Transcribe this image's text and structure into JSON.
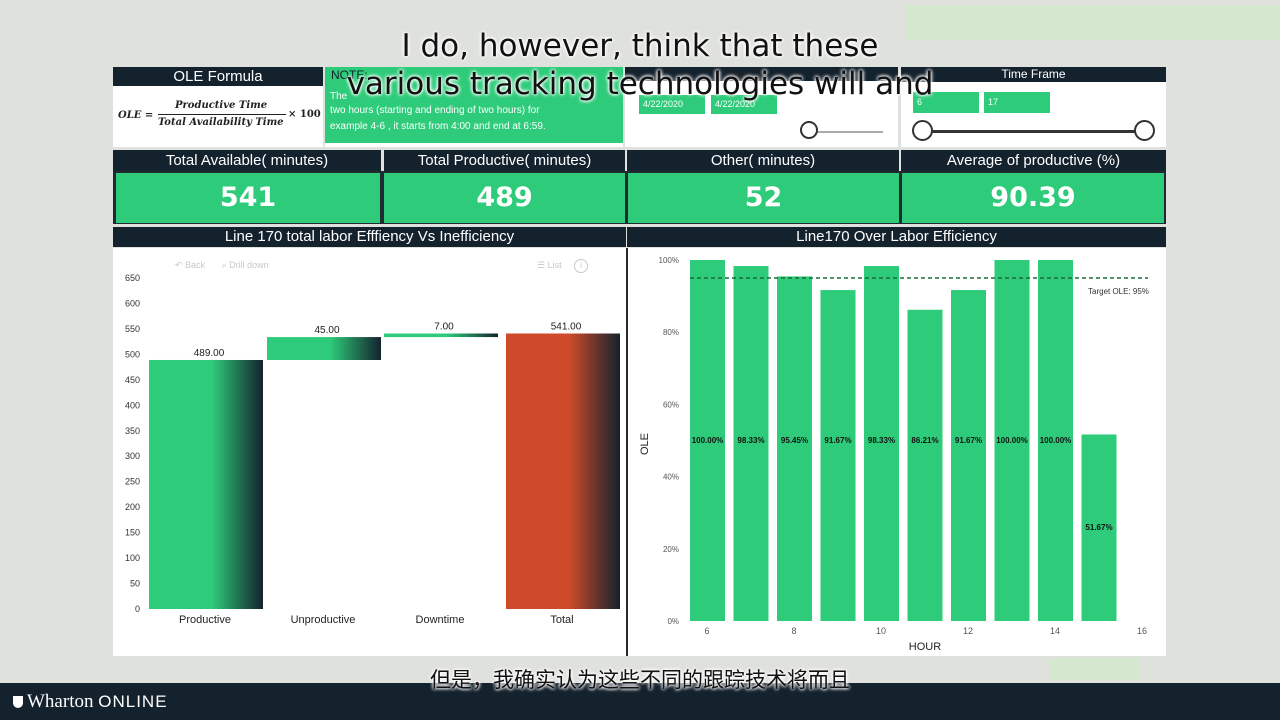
{
  "captions": {
    "line1": "I do, however, think that these",
    "line2": "various tracking technologies will and",
    "chinese": "但是，我确实认为这些不同的跟踪技术将而且"
  },
  "formula_panel": {
    "title": "OLE Formula",
    "lhs": "OLE =",
    "numerator": "Productive Time",
    "denominator": "Total Availability Time",
    "multiplier": "× 100"
  },
  "note": {
    "title": "NOTE:",
    "text_line1": "The",
    "text_line2": "two hours (starting and ending of two hours) for",
    "text_line3": "example 4-6 , it starts from 4:00 and end at 6:59."
  },
  "date_frame": {
    "title": "Date frame",
    "start": "4/22/2020",
    "end": "4/22/2020"
  },
  "time_frame": {
    "title": "Time Frame",
    "start": "6",
    "end": "17"
  },
  "kpis": [
    {
      "label": "Total Available( minutes)",
      "value": "541"
    },
    {
      "label": "Total Productive( minutes)",
      "value": "489"
    },
    {
      "label": "Other( minutes)",
      "value": "52"
    },
    {
      "label": "Average of productive (%)",
      "value": "90.39"
    }
  ],
  "waterfall": {
    "title": "Line 170 total labor Efffiency Vs Inefficiency",
    "toolbar": {
      "back": "Back",
      "drill": "Drill down",
      "list": "List"
    },
    "colors": {
      "green": "#2ecc7a",
      "dark": "#14222e",
      "total": "#cf4a2a"
    }
  },
  "bars": {
    "title": "Line170 Over Labor Efficiency",
    "target_label": "Target OLE: 95%",
    "ylabel": "OLE",
    "xlabel": "HOUR"
  },
  "branding": {
    "logo": "Wharton",
    "suffix": "ONLINE"
  },
  "chart_data": [
    {
      "type": "bar",
      "subtype": "waterfall",
      "categories": [
        "Productive",
        "Unproductive",
        "Downtime",
        "Total"
      ],
      "values": [
        489,
        45,
        7,
        541
      ],
      "labels": [
        "489.00",
        "45.00",
        "7.00",
        "541.00"
      ],
      "title": "Line 170 total labor Efffiency Vs Inefficiency",
      "yticks": [
        "0",
        "50",
        "100",
        "150",
        "200",
        "250",
        "300",
        "350",
        "400",
        "450",
        "500",
        "550",
        "600",
        "650"
      ],
      "ylim": [
        0,
        650
      ]
    },
    {
      "type": "bar",
      "title": "Line170 Over Labor Efficiency",
      "x": [
        6,
        7,
        8,
        9,
        10,
        11,
        12,
        13,
        14,
        15
      ],
      "values": [
        100.0,
        98.33,
        95.45,
        91.67,
        98.33,
        86.21,
        91.67,
        100.0,
        100.0,
        51.67
      ],
      "labels": [
        "100.00%",
        "98.33%",
        "95.45%",
        "91.67%",
        "98.33%",
        "86.21%",
        "91.67%",
        "100.00%",
        "100.00%",
        "51.67%"
      ],
      "xticks": [
        "6",
        "8",
        "10",
        "12",
        "14",
        "16"
      ],
      "yticks": [
        "0%",
        "20%",
        "40%",
        "60%",
        "80%",
        "100%"
      ],
      "ylim": [
        0,
        100
      ],
      "target": 95,
      "xlabel": "HOUR",
      "ylabel": "OLE"
    }
  ]
}
